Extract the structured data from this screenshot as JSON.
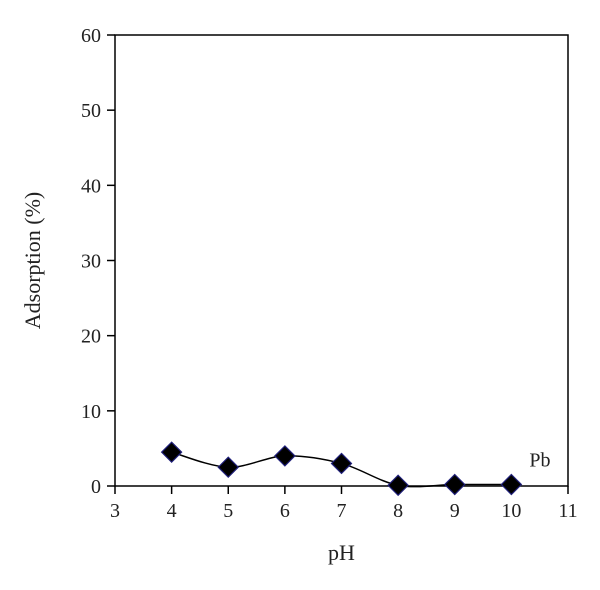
{
  "chart_data": {
    "type": "line",
    "title": "",
    "xlabel": "pH",
    "ylabel": "Adsorption (%)",
    "xlim": [
      3,
      11
    ],
    "ylim": [
      0,
      60
    ],
    "xticks": [
      3,
      4,
      5,
      6,
      7,
      8,
      9,
      10,
      11
    ],
    "yticks": [
      0,
      10,
      20,
      30,
      40,
      50,
      60
    ],
    "grid": false,
    "legend": "none",
    "series": [
      {
        "name": "Pb",
        "marker": "diamond",
        "color": "#000000",
        "marker_edge_color": "#1f1f7a",
        "smooth": true,
        "x": [
          4,
          5,
          6,
          7,
          8,
          9,
          10
        ],
        "y": [
          4.5,
          2.5,
          4.0,
          3.0,
          0.1,
          0.2,
          0.2
        ]
      }
    ]
  }
}
